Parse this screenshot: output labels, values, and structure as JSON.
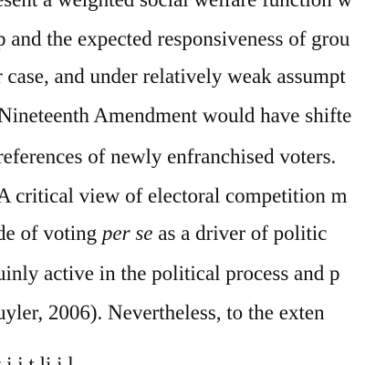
{
  "paragraph": {
    "lines": [
      "esent a weighted social welfare function w",
      "p and the expected responsiveness of grou",
      "r case, and under relatively weak assumpt",
      "Nineteenth Amendment would have shifte",
      "references of newly enfranchised voters.",
      "A critical view of electoral competition m",
      "uinly active in the political process and p",
      "uyler, 2006).  Nevertheless, to the exten",
      "t    i    i   t  li   i l"
    ],
    "line6": {
      "before": "de of voting ",
      "italic": "per se",
      "after": " as a driver of politic"
    }
  }
}
